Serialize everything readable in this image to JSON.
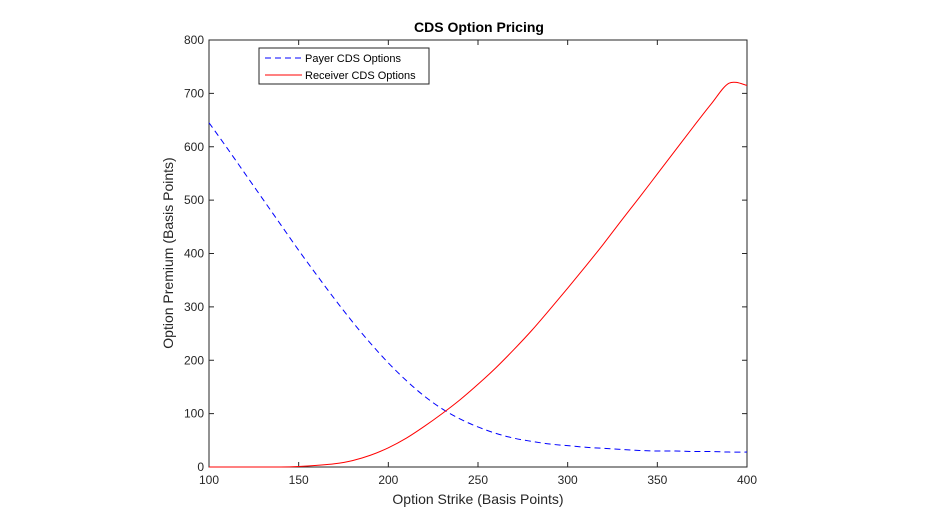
{
  "chart_data": {
    "type": "line",
    "title": "CDS Option Pricing",
    "xlabel": "Option Strike (Basis Points)",
    "ylabel": "Option Premium (Basis Points)",
    "xlim": [
      100,
      400
    ],
    "ylim": [
      0,
      800
    ],
    "xticks": [
      100,
      150,
      200,
      250,
      300,
      350,
      400
    ],
    "yticks": [
      0,
      100,
      200,
      300,
      400,
      500,
      600,
      700,
      800
    ],
    "grid": false,
    "legend_position": "top-left",
    "x": [
      100,
      110,
      120,
      130,
      140,
      150,
      160,
      170,
      180,
      190,
      200,
      210,
      220,
      230,
      240,
      250,
      260,
      270,
      280,
      290,
      300,
      310,
      320,
      330,
      340,
      350,
      360,
      370,
      380,
      390,
      400
    ],
    "series": [
      {
        "name": "Payer CDS Options",
        "style": "dashed",
        "color": "#0000ff",
        "values": [
          645,
          598,
          550,
          502,
          454,
          406,
          360,
          315,
          272,
          232,
          195,
          162,
          133,
          109,
          90,
          75,
          63,
          54,
          48,
          43,
          40,
          37,
          35,
          33,
          31,
          30,
          30,
          29,
          29,
          28,
          28
        ]
      },
      {
        "name": "Receiver CDS Options",
        "style": "solid",
        "color": "#ff0000",
        "values": [
          0,
          0,
          0,
          0,
          0,
          1,
          3,
          6,
          12,
          22,
          36,
          54,
          76,
          100,
          126,
          155,
          186,
          220,
          256,
          295,
          335,
          376,
          418,
          462,
          505,
          549,
          593,
          637,
          680,
          719,
          715
        ]
      }
    ]
  }
}
